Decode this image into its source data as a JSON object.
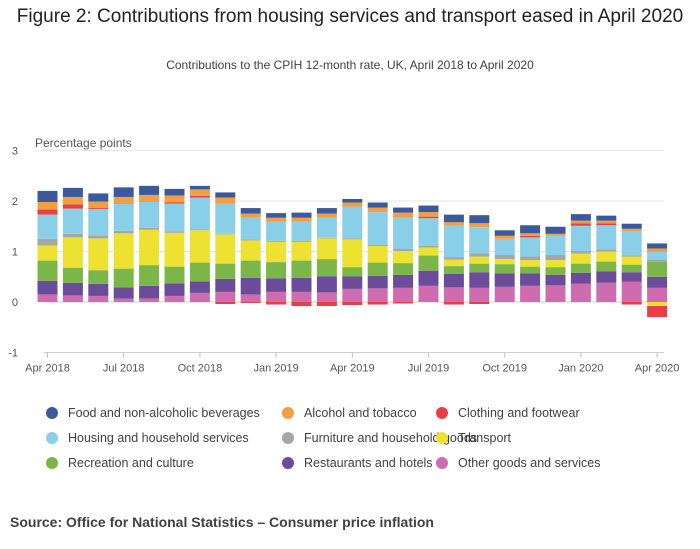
{
  "title": "Figure 2: Contributions from housing services and transport eased in April 2020",
  "subtitle": "Contributions to the CPIH 12-month rate, UK, April 2018 to April 2020",
  "source": "Source: Office for National Statistics – Consumer price inflation",
  "chart_data": {
    "type": "bar",
    "stacked": true,
    "ylabel": "Percentage points",
    "ylim": [
      -1,
      3
    ],
    "yticks": [
      -1,
      0,
      1,
      2,
      3
    ],
    "x_tick_labels": [
      "Apr 2018",
      "Jul 2018",
      "Oct 2018",
      "Jan 2019",
      "Apr 2019",
      "Jul 2019",
      "Oct 2019",
      "Jan 2020",
      "Apr 2020"
    ],
    "categories": [
      "Apr 2018",
      "May 2018",
      "Jun 2018",
      "Jul 2018",
      "Aug 2018",
      "Sep 2018",
      "Oct 2018",
      "Nov 2018",
      "Dec 2018",
      "Jan 2019",
      "Feb 2019",
      "Mar 2019",
      "Apr 2019",
      "May 2019",
      "Jun 2019",
      "Jul 2019",
      "Aug 2019",
      "Sep 2019",
      "Oct 2019",
      "Nov 2019",
      "Dec 2019",
      "Jan 2020",
      "Feb 2020",
      "Mar 2020",
      "Apr 2020"
    ],
    "series": [
      {
        "name": "Other goods and services",
        "color": "#cf6cb0",
        "values": [
          0.15,
          0.13,
          0.12,
          0.07,
          0.07,
          0.12,
          0.18,
          0.2,
          0.15,
          0.2,
          0.2,
          0.19,
          0.26,
          0.27,
          0.28,
          0.32,
          0.29,
          0.28,
          0.3,
          0.32,
          0.33,
          0.36,
          0.38,
          0.4,
          0.28
        ]
      },
      {
        "name": "Restaurants and hotels",
        "color": "#6b4c9a",
        "values": [
          0.27,
          0.25,
          0.24,
          0.22,
          0.25,
          0.25,
          0.23,
          0.26,
          0.33,
          0.27,
          0.28,
          0.32,
          0.25,
          0.25,
          0.26,
          0.3,
          0.27,
          0.31,
          0.27,
          0.25,
          0.21,
          0.22,
          0.23,
          0.19,
          0.22
        ]
      },
      {
        "name": "Recreation and culture",
        "color": "#7ab648",
        "values": [
          0.4,
          0.3,
          0.27,
          0.37,
          0.41,
          0.33,
          0.37,
          0.3,
          0.34,
          0.32,
          0.34,
          0.34,
          0.18,
          0.26,
          0.23,
          0.3,
          0.15,
          0.17,
          0.18,
          0.13,
          0.15,
          0.18,
          0.19,
          0.15,
          0.3
        ]
      },
      {
        "name": "Transport",
        "color": "#ede132",
        "values": [
          0.3,
          0.6,
          0.63,
          0.7,
          0.7,
          0.67,
          0.64,
          0.58,
          0.4,
          0.4,
          0.37,
          0.41,
          0.55,
          0.33,
          0.24,
          0.16,
          0.13,
          0.14,
          0.1,
          0.13,
          0.14,
          0.2,
          0.2,
          0.16,
          -0.08
        ]
      },
      {
        "name": "Furniture and household goods",
        "color": "#a6a6a6",
        "values": [
          0.13,
          0.07,
          0.06,
          0.05,
          0.04,
          0.03,
          0.02,
          0.01,
          0.02,
          0.02,
          0.02,
          0.01,
          0.02,
          0.02,
          0.04,
          0.03,
          0.05,
          0.06,
          0.08,
          0.07,
          0.1,
          0.05,
          0.04,
          0.02,
          0.04
        ]
      },
      {
        "name": "Housing and household services",
        "color": "#8acfe8",
        "values": [
          0.48,
          0.5,
          0.52,
          0.53,
          0.51,
          0.55,
          0.63,
          0.6,
          0.43,
          0.38,
          0.38,
          0.4,
          0.63,
          0.65,
          0.62,
          0.55,
          0.62,
          0.52,
          0.32,
          0.38,
          0.38,
          0.5,
          0.48,
          0.48,
          0.15
        ]
      },
      {
        "name": "Clothing and footwear",
        "color": "#e64046",
        "values": [
          0.1,
          0.08,
          0.02,
          0.0,
          0.0,
          0.02,
          0.03,
          -0.04,
          -0.02,
          -0.05,
          -0.08,
          -0.08,
          -0.06,
          -0.05,
          -0.03,
          0.03,
          -0.05,
          -0.04,
          0.0,
          0.03,
          0.0,
          0.05,
          0.04,
          -0.05,
          -0.22
        ]
      },
      {
        "name": "Alcohol and tobacco",
        "color": "#f39e40",
        "values": [
          0.15,
          0.15,
          0.13,
          0.14,
          0.14,
          0.14,
          0.13,
          0.12,
          0.08,
          0.08,
          0.08,
          0.08,
          0.08,
          0.09,
          0.1,
          0.09,
          0.07,
          0.08,
          0.06,
          0.05,
          0.04,
          0.05,
          0.05,
          0.05,
          0.07
        ]
      },
      {
        "name": "Food and non-alcoholic beverages",
        "color": "#3a5a9c",
        "values": [
          0.22,
          0.18,
          0.16,
          0.19,
          0.18,
          0.13,
          0.07,
          0.1,
          0.11,
          0.09,
          0.1,
          0.11,
          0.07,
          0.1,
          0.1,
          0.13,
          0.15,
          0.16,
          0.11,
          0.16,
          0.14,
          0.13,
          0.1,
          0.1,
          0.1
        ]
      }
    ],
    "legend": [
      {
        "name": "Food and non-alcoholic beverages",
        "color": "#3a5a9c"
      },
      {
        "name": "Alcohol and tobacco",
        "color": "#f39e40"
      },
      {
        "name": "Clothing and footwear",
        "color": "#e64046"
      },
      {
        "name": "Housing and household services",
        "color": "#8acfe8"
      },
      {
        "name": "Furniture and household goods",
        "color": "#a6a6a6"
      },
      {
        "name": "Transport",
        "color": "#ede132"
      },
      {
        "name": "Recreation and culture",
        "color": "#7ab648"
      },
      {
        "name": "Restaurants and hotels",
        "color": "#6b4c9a"
      },
      {
        "name": "Other goods and services",
        "color": "#cf6cb0"
      }
    ]
  }
}
